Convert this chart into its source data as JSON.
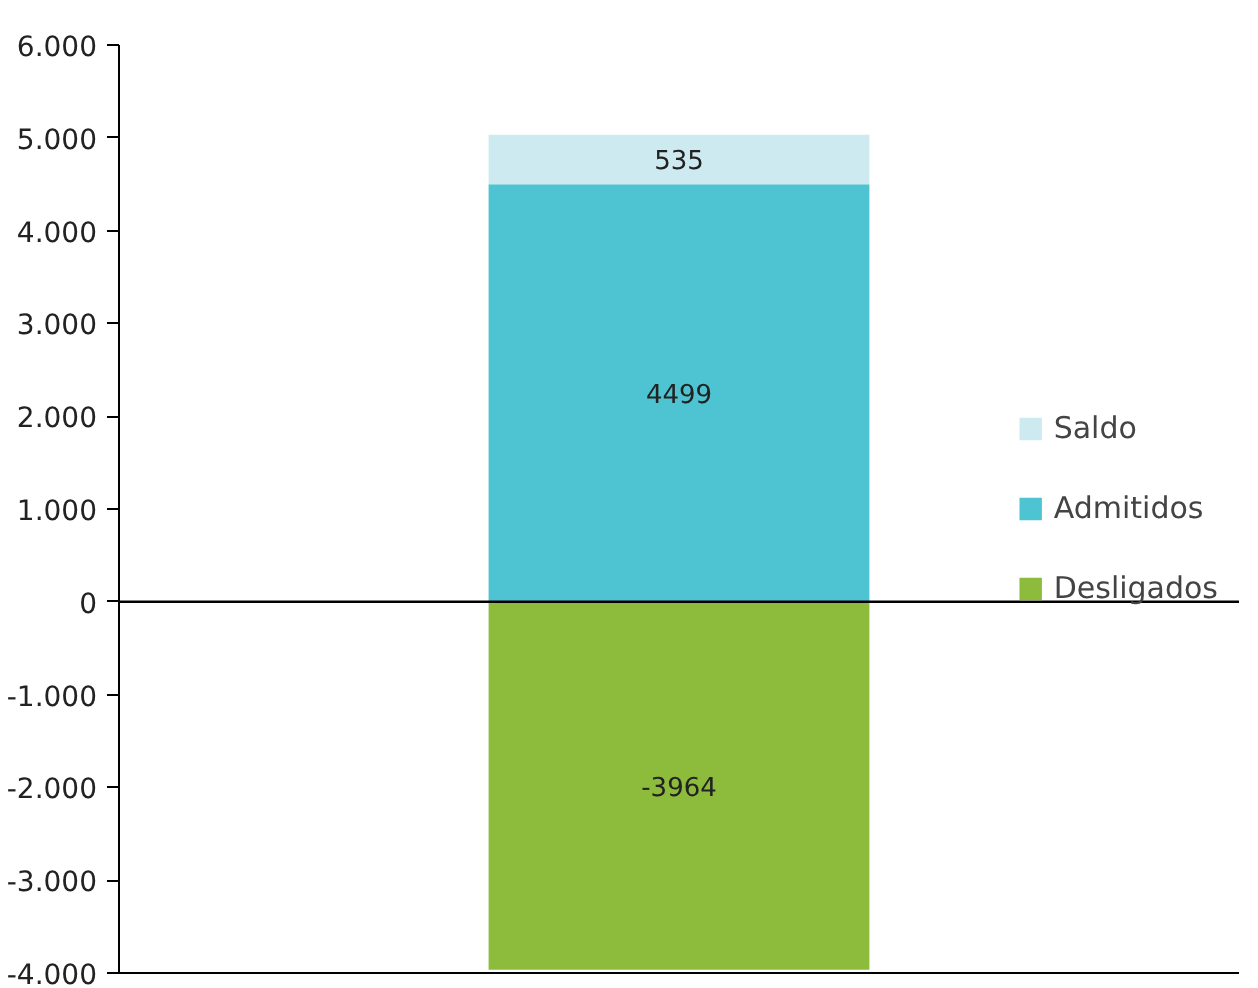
{
  "chart_data": {
    "type": "bar",
    "stacked": true,
    "categories": [
      null
    ],
    "series": [
      {
        "name": "Desligados",
        "color": "#8dbb3c",
        "values": [
          -3964
        ]
      },
      {
        "name": "Admitidos",
        "color": "#4ec4d2",
        "values": [
          4499
        ]
      },
      {
        "name": "Saldo",
        "color": "#cdeaf0",
        "values": [
          535
        ]
      }
    ],
    "ylim": [
      -4000,
      6000
    ],
    "yticks": [
      {
        "value": -4000,
        "label": "-4.000"
      },
      {
        "value": -3000,
        "label": "-3.000"
      },
      {
        "value": -2000,
        "label": "-2.000"
      },
      {
        "value": -1000,
        "label": "-1.000"
      },
      {
        "value": 0,
        "label": "0"
      },
      {
        "value": 1000,
        "label": "1.000"
      },
      {
        "value": 2000,
        "label": "2.000"
      },
      {
        "value": 3000,
        "label": "3.000"
      },
      {
        "value": 4000,
        "label": "4.000"
      },
      {
        "value": 5000,
        "label": "5.000"
      },
      {
        "value": 6000,
        "label": "6.000"
      }
    ],
    "ref_lines": [
      {
        "axis": "y",
        "value": 0,
        "color": "#000000"
      }
    ],
    "data_labels": true,
    "legend": "right",
    "grid": false,
    "tick_labels": "y"
  }
}
